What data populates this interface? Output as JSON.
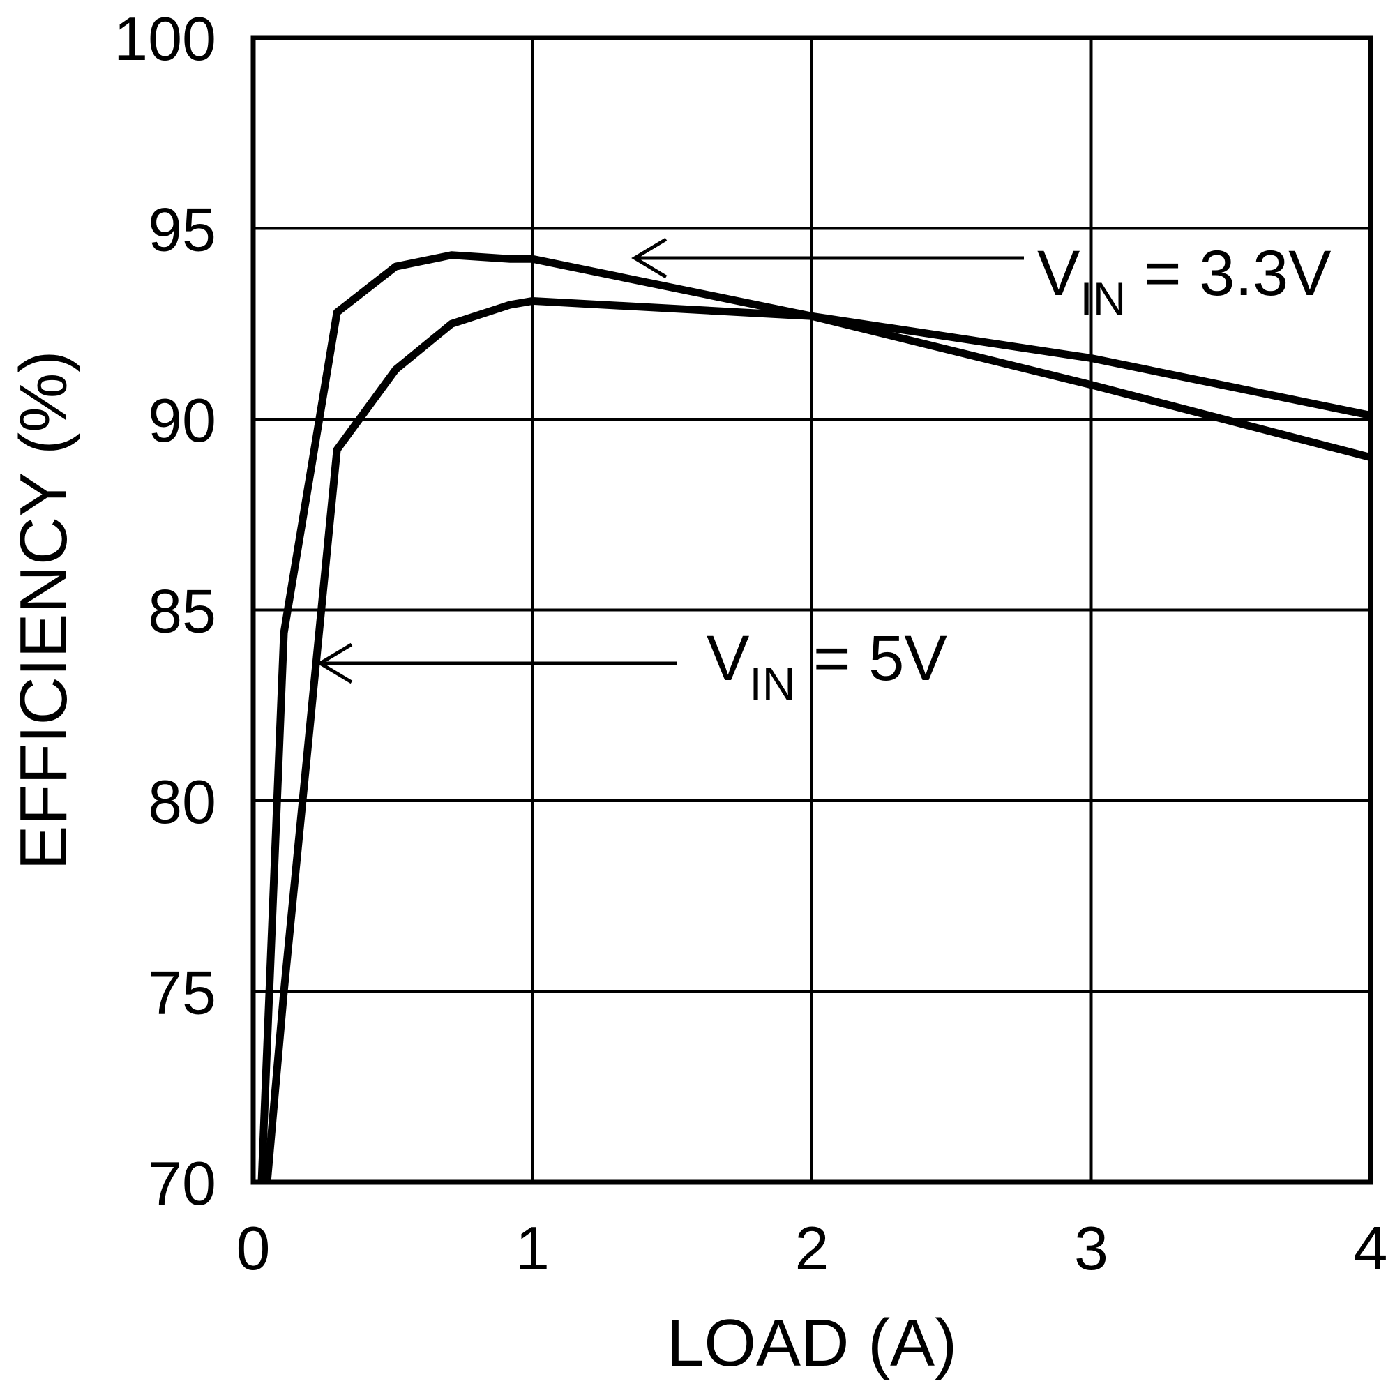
{
  "chart_data": {
    "type": "line",
    "title": "",
    "xlabel": "LOAD (A)",
    "ylabel": "EFFICIENCY (%)",
    "xlim": [
      0,
      4
    ],
    "ylim": [
      70,
      100
    ],
    "xticks": [
      "0",
      "1",
      "2",
      "3",
      "4"
    ],
    "yticks": [
      "70",
      "75",
      "80",
      "85",
      "90",
      "95",
      "100"
    ],
    "grid": true,
    "line_color": "#000000",
    "series": [
      {
        "name": "VIN = 3.3V",
        "label_main": "V",
        "label_sub": "IN",
        "label_rest": " = 3.3V",
        "x": [
          0.03,
          0.11,
          0.3,
          0.51,
          0.71,
          0.92,
          1.0,
          2.0,
          3.0,
          4.0
        ],
        "y": [
          70.0,
          84.4,
          92.8,
          94.0,
          94.3,
          94.2,
          94.2,
          92.7,
          90.9,
          89.0
        ]
      },
      {
        "name": "VIN = 5V",
        "label_main": "V",
        "label_sub": "IN",
        "label_rest": " = 5V",
        "x": [
          0.05,
          0.11,
          0.3,
          0.51,
          0.71,
          0.92,
          1.0,
          2.0,
          3.0,
          4.0
        ],
        "y": [
          70.0,
          75.0,
          89.2,
          91.3,
          92.5,
          93.0,
          93.1,
          92.7,
          91.6,
          90.1
        ]
      }
    ]
  }
}
